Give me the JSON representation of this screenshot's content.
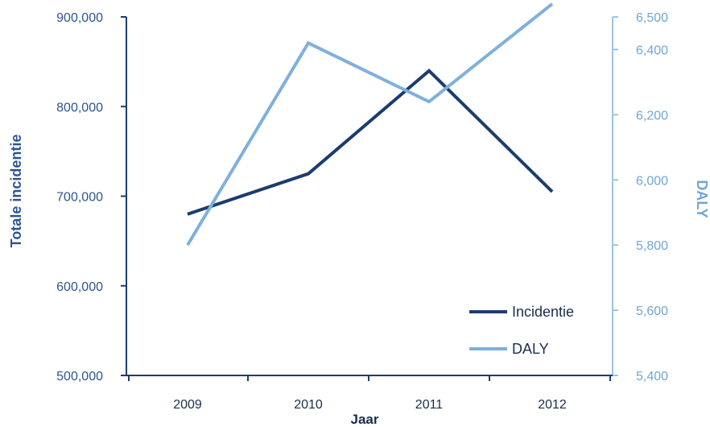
{
  "chart_data": {
    "type": "line",
    "categories": [
      "2009",
      "2010",
      "2011",
      "2012"
    ],
    "xlabel": "Jaar",
    "y_left": {
      "label": "Totale incidentie",
      "range": [
        500000,
        900000
      ],
      "ticks": [
        500000,
        600000,
        700000,
        800000,
        900000
      ],
      "tick_labels": [
        "500,000",
        "600,000",
        "700,000",
        "800,000",
        "900,000"
      ]
    },
    "y_right": {
      "label": "DALY",
      "range": [
        5400,
        6500
      ],
      "ticks": [
        5400,
        5600,
        5800,
        6000,
        6200,
        6400,
        6500
      ],
      "tick_labels": [
        "5,400",
        "5,600",
        "5,800",
        "6,000",
        "6,200",
        "6,400",
        "6,500"
      ]
    },
    "series": [
      {
        "name": "Incidentie",
        "axis": "left",
        "color": "#1c3c6e",
        "values": [
          680000,
          725000,
          840000,
          705000
        ]
      },
      {
        "name": "DALY",
        "axis": "right",
        "color": "#7fb0db",
        "values": [
          5800,
          6420,
          6240,
          6540
        ]
      }
    ],
    "grid": false,
    "legend_position": "bottom-right"
  }
}
